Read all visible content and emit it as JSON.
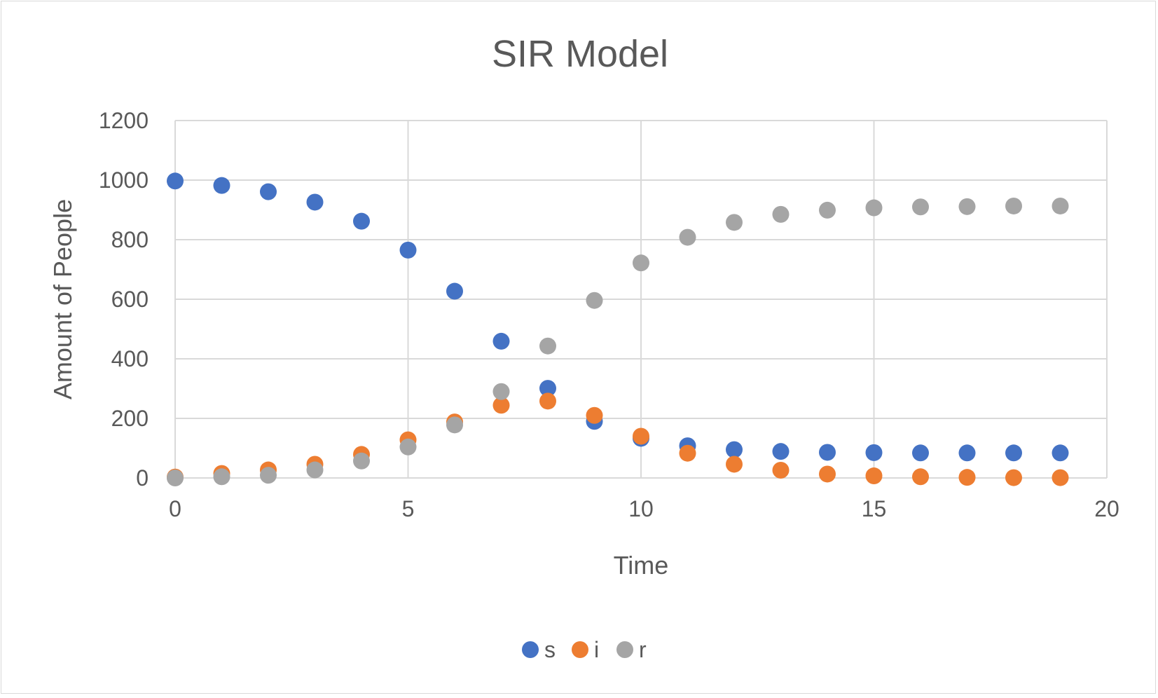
{
  "chart_data": {
    "type": "scatter",
    "title": "SIR Model",
    "xlabel": "Time",
    "ylabel": "Amount of People",
    "xlim": [
      0,
      20
    ],
    "ylim": [
      0,
      1200
    ],
    "x_ticks": [
      0,
      5,
      10,
      15,
      20
    ],
    "y_ticks": [
      0,
      200,
      400,
      600,
      800,
      1000,
      1200
    ],
    "grid": true,
    "legend_position": "bottom",
    "x": [
      0,
      1,
      2,
      3,
      4,
      5,
      6,
      7,
      8,
      9,
      10,
      11,
      12,
      13,
      14,
      15,
      16,
      17,
      18,
      19
    ],
    "series": [
      {
        "name": "s",
        "color": "#4472C4",
        "values": [
          997,
          982,
          961,
          926,
          862,
          765,
          627,
          459,
          301,
          190,
          133,
          108,
          95,
          89,
          86,
          85,
          84,
          84,
          84,
          84
        ]
      },
      {
        "name": "i",
        "color": "#ED7D31",
        "values": [
          3,
          15,
          27,
          46,
          79,
          128,
          188,
          244,
          258,
          210,
          140,
          83,
          46,
          26,
          13,
          7,
          4,
          2,
          1,
          1
        ]
      },
      {
        "name": "r",
        "color": "#A5A5A5",
        "values": [
          0,
          4,
          9,
          27,
          57,
          104,
          178,
          290,
          443,
          596,
          722,
          808,
          858,
          885,
          899,
          907,
          910,
          911,
          913,
          913
        ]
      }
    ]
  }
}
